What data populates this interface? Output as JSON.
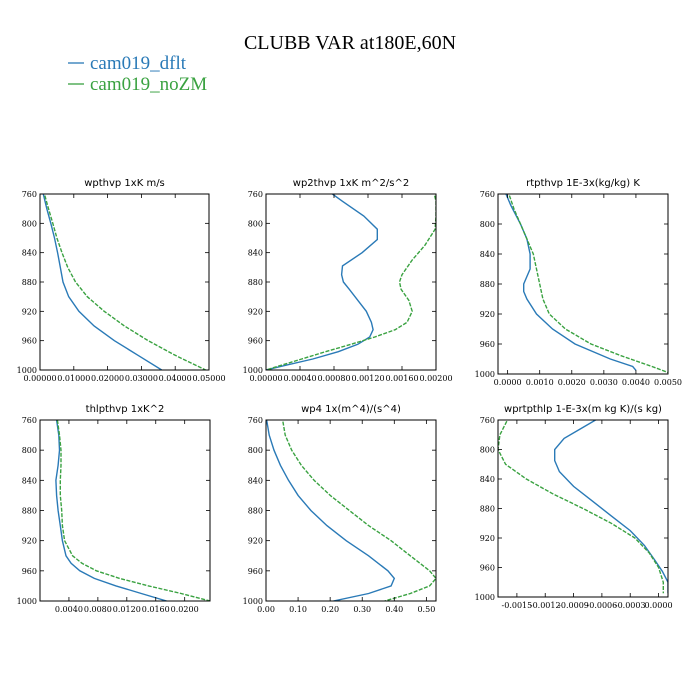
{
  "figure": {
    "title": "CLUBB VAR at180E,60N",
    "legend": [
      {
        "label": "cam019_dflt",
        "color": "#2a7ab7"
      },
      {
        "label": "cam019_noZM",
        "color": "#3aa241"
      }
    ]
  },
  "chart_data": [
    {
      "type": "line",
      "title": "wpthvp  1xK m/s",
      "xlim": [
        0,
        0.05
      ],
      "ylim": [
        760,
        1000
      ],
      "y_inverted": true,
      "xticks": [
        0,
        0.01,
        0.02,
        0.03,
        0.04,
        0.05
      ],
      "xtick_labels": [
        "0.00000",
        "0.01000",
        "0.02000",
        "0.03000",
        "0.04000",
        "0.05000"
      ],
      "yticks": [
        760,
        800,
        840,
        880,
        920,
        960,
        1000
      ],
      "ytick_labels": [
        "760",
        "800",
        "840",
        "880",
        "920",
        "960",
        "1000"
      ],
      "series": [
        {
          "name": "cam019_dflt",
          "y": [
            755,
            780,
            800,
            820,
            840,
            860,
            880,
            900,
            920,
            940,
            960,
            980,
            1000
          ],
          "x": [
            0.0007,
            0.002,
            0.0032,
            0.0043,
            0.0052,
            0.006,
            0.0068,
            0.0085,
            0.0115,
            0.016,
            0.022,
            0.029,
            0.036
          ]
        },
        {
          "name": "cam019_noZM",
          "y": [
            755,
            780,
            800,
            820,
            840,
            860,
            880,
            900,
            920,
            940,
            960,
            980,
            1000
          ],
          "x": [
            0.001,
            0.0025,
            0.0038,
            0.005,
            0.0065,
            0.0082,
            0.0105,
            0.014,
            0.019,
            0.025,
            0.032,
            0.04,
            0.049
          ]
        }
      ]
    },
    {
      "type": "line",
      "title": "wp2thvp  1xK m^2/s^2",
      "xlim": [
        0,
        0.002
      ],
      "ylim": [
        760,
        1000
      ],
      "y_inverted": true,
      "xticks": [
        0,
        0.0004,
        0.0008,
        0.0012,
        0.0016,
        0.002
      ],
      "xtick_labels": [
        "0.00000",
        "0.00040",
        "0.00080",
        "0.00120",
        "0.00160",
        "0.00200"
      ],
      "yticks": [
        760,
        800,
        840,
        880,
        920,
        960,
        1000
      ],
      "ytick_labels": [
        "760",
        "800",
        "840",
        "880",
        "920",
        "960",
        "1000"
      ],
      "series": [
        {
          "name": "cam019_dflt",
          "y": [
            755,
            770,
            790,
            808,
            822,
            840,
            858,
            870,
            880,
            890,
            905,
            920,
            935,
            945,
            955,
            965,
            975,
            985,
            995,
            1000
          ],
          "x": [
            0.00072,
            0.0009,
            0.00115,
            0.00131,
            0.00131,
            0.00113,
            0.0009,
            0.00089,
            0.00091,
            0.00098,
            0.00108,
            0.00118,
            0.00124,
            0.00126,
            0.00122,
            0.00108,
            0.00085,
            0.00055,
            0.00018,
            0
          ]
        },
        {
          "name": "cam019_noZM",
          "y": [
            755,
            770,
            790,
            808,
            830,
            850,
            870,
            880,
            890,
            905,
            920,
            935,
            945,
            955,
            965,
            975,
            985,
            995,
            1000
          ],
          "x": [
            0.00197,
            0.002,
            0.002,
            0.00199,
            0.00187,
            0.00172,
            0.0016,
            0.00157,
            0.00159,
            0.00168,
            0.00172,
            0.00166,
            0.00152,
            0.00128,
            0.001,
            0.0007,
            0.00042,
            0.00014,
            0
          ]
        }
      ]
    },
    {
      "type": "line",
      "title": "rtpthvp  1E-3x(kg/kg) K",
      "xlim": [
        -0.0003,
        0.005
      ],
      "ylim": [
        760,
        1000
      ],
      "y_inverted": true,
      "xticks": [
        0,
        0.001,
        0.002,
        0.003,
        0.004,
        0.005
      ],
      "xtick_labels": [
        "0.0000",
        "0.0010",
        "0.0020",
        "0.0030",
        "0.0040",
        "0.0050"
      ],
      "yticks": [
        760,
        800,
        840,
        880,
        920,
        960,
        1000
      ],
      "ytick_labels": [
        "760",
        "800",
        "840",
        "880",
        "920",
        "960",
        "1000"
      ],
      "series": [
        {
          "name": "cam019_dflt",
          "y": [
            755,
            775,
            800,
            820,
            840,
            860,
            880,
            890,
            900,
            920,
            940,
            960,
            980,
            990,
            995
          ],
          "x": [
            -0.0001,
            0.0001,
            0.0004,
            0.0006,
            0.0007,
            0.0007,
            0.0005,
            0.0005,
            0.0006,
            0.0009,
            0.0014,
            0.0021,
            0.0032,
            0.0039,
            0.004
          ]
        },
        {
          "name": "cam019_noZM",
          "y": [
            755,
            780,
            800,
            820,
            840,
            860,
            880,
            900,
            920,
            940,
            960,
            975,
            990,
            998
          ],
          "x": [
            0,
            0.0002,
            0.0004,
            0.0006,
            0.0008,
            0.0009,
            0.001,
            0.0011,
            0.0013,
            0.0018,
            0.0026,
            0.0035,
            0.0045,
            0.005
          ]
        }
      ]
    },
    {
      "type": "line",
      "title": "thlpthvp  1xK^2",
      "xlim": [
        0,
        0.0235
      ],
      "ylim": [
        760,
        1000
      ],
      "y_inverted": true,
      "xticks": [
        0.004,
        0.008,
        0.012,
        0.016,
        0.02
      ],
      "xtick_labels": [
        "0.0040",
        "0.0080",
        "0.0120",
        "0.0160",
        "0.0200"
      ],
      "yticks": [
        760,
        800,
        840,
        880,
        920,
        960,
        1000
      ],
      "ytick_labels": [
        "760",
        "800",
        "840",
        "880",
        "920",
        "960",
        "1000"
      ],
      "series": [
        {
          "name": "cam019_dflt",
          "y": [
            760,
            780,
            800,
            820,
            840,
            860,
            880,
            900,
            920,
            940,
            950,
            960,
            970,
            980,
            990,
            1000
          ],
          "x": [
            0.0023,
            0.0026,
            0.0027,
            0.0025,
            0.0022,
            0.0023,
            0.0025,
            0.0028,
            0.0031,
            0.0036,
            0.0043,
            0.0055,
            0.0075,
            0.0105,
            0.014,
            0.0175
          ]
        },
        {
          "name": "cam019_noZM",
          "y": [
            760,
            780,
            800,
            820,
            840,
            860,
            880,
            900,
            920,
            940,
            950,
            960,
            970,
            980,
            990,
            1000
          ],
          "x": [
            0.0024,
            0.0027,
            0.0029,
            0.0029,
            0.0028,
            0.0028,
            0.003,
            0.0031,
            0.0034,
            0.0045,
            0.0058,
            0.0078,
            0.011,
            0.015,
            0.0195,
            0.0235
          ]
        }
      ]
    },
    {
      "type": "line",
      "title": "wp4  1x(m^4)/(s^4)",
      "xlim": [
        0,
        0.53
      ],
      "ylim": [
        760,
        1000
      ],
      "y_inverted": true,
      "xticks": [
        0,
        0.1,
        0.2,
        0.3,
        0.4,
        0.5
      ],
      "xtick_labels": [
        "0.00",
        "0.10",
        "0.20",
        "0.30",
        "0.40",
        "0.50"
      ],
      "yticks": [
        760,
        800,
        840,
        880,
        920,
        960,
        1000
      ],
      "ytick_labels": [
        "760",
        "800",
        "840",
        "880",
        "920",
        "960",
        "1000"
      ],
      "series": [
        {
          "name": "cam019_dflt",
          "y": [
            755,
            780,
            800,
            820,
            840,
            860,
            880,
            900,
            920,
            940,
            960,
            970,
            980,
            990,
            1000
          ],
          "x": [
            0,
            0.01,
            0.025,
            0.045,
            0.07,
            0.1,
            0.14,
            0.19,
            0.25,
            0.32,
            0.38,
            0.4,
            0.39,
            0.32,
            0.21
          ]
        },
        {
          "name": "cam019_noZM",
          "y": [
            755,
            780,
            800,
            820,
            840,
            860,
            880,
            900,
            920,
            940,
            960,
            970,
            980,
            990,
            1000
          ],
          "x": [
            0.05,
            0.06,
            0.08,
            0.11,
            0.15,
            0.2,
            0.26,
            0.32,
            0.39,
            0.45,
            0.51,
            0.53,
            0.51,
            0.45,
            0.37
          ]
        }
      ]
    },
    {
      "type": "line",
      "title": "wprtpthlp  1-E-3x(m kg K)/(s kg)",
      "xlim": [
        -0.0017,
        0.0001
      ],
      "ylim": [
        760,
        1000
      ],
      "y_inverted": true,
      "xticks": [
        -0.0015,
        -0.0012,
        -0.0009,
        -0.0006,
        -0.0003,
        0
      ],
      "xtick_labels": [
        "-0.0015",
        "-0.0012",
        "-0.0009",
        "-0.0006",
        "-0.0003",
        "0.0000"
      ],
      "yticks": [
        760,
        800,
        840,
        880,
        920,
        960,
        1000
      ],
      "ytick_labels": [
        "760",
        "800",
        "840",
        "880",
        "920",
        "960",
        "1000"
      ],
      "series": [
        {
          "name": "cam019_dflt",
          "y": [
            755,
            770,
            785,
            800,
            815,
            830,
            850,
            870,
            890,
            910,
            930,
            950,
            965,
            980,
            995
          ],
          "x": [
            -0.0006,
            -0.0008,
            -0.001,
            -0.0011,
            -0.0011,
            -0.00105,
            -0.0009,
            -0.0007,
            -0.0005,
            -0.0003,
            -0.00015,
            -4e-05,
            4e-05,
            0.0001,
            0.0001
          ]
        },
        {
          "name": "cam019_noZM",
          "y": [
            755,
            780,
            800,
            820,
            840,
            860,
            880,
            900,
            920,
            940,
            960,
            980,
            995
          ],
          "x": [
            -0.00158,
            -0.00168,
            -0.0017,
            -0.00162,
            -0.0014,
            -0.00112,
            -0.0008,
            -0.0005,
            -0.00025,
            -0.0001,
            0,
            5e-05,
            5e-05
          ]
        }
      ]
    }
  ]
}
